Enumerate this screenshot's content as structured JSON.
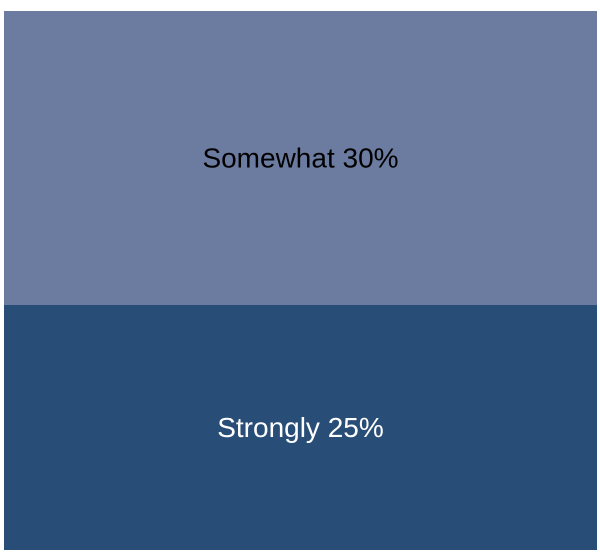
{
  "chart_data": {
    "type": "bar",
    "stacked": true,
    "orientation": "vertical",
    "series": [
      {
        "name": "Strongly",
        "value": 25,
        "label": "Strongly 25%",
        "color": "#284D76",
        "text_color": "#FFFFFF"
      },
      {
        "name": "Somewhat",
        "value": 30,
        "label": "Somewhat 30%",
        "color": "#6C7BA0",
        "text_color": "#000000"
      }
    ],
    "unit": "%",
    "axes_visible": false,
    "grid": false,
    "legend": "none"
  }
}
